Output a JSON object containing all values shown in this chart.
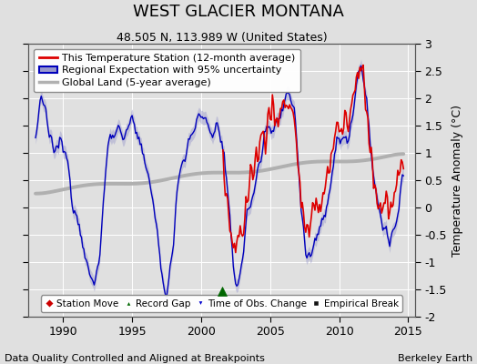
{
  "title": "WEST GLACIER MONTANA",
  "subtitle": "48.505 N, 113.989 W (United States)",
  "ylabel": "Temperature Anomaly (°C)",
  "xlabel_left": "Data Quality Controlled and Aligned at Breakpoints",
  "xlabel_right": "Berkeley Earth",
  "xlim": [
    1987.5,
    2015.5
  ],
  "ylim": [
    -2.0,
    3.0
  ],
  "yticks": [
    -2,
    -1.5,
    -1,
    -0.5,
    0,
    0.5,
    1,
    1.5,
    2,
    2.5,
    3
  ],
  "xticks": [
    1990,
    1995,
    2000,
    2005,
    2010,
    2015
  ],
  "bg_color": "#e0e0e0",
  "plot_bg_color": "#e0e0e0",
  "grid_color": "#ffffff",
  "red_line_color": "#dd0000",
  "blue_line_color": "#0000bb",
  "blue_fill_color": "#9999cc",
  "gray_line_color": "#b0b0b0",
  "marker_green_color": "#006600",
  "marker_green_x": 2001.5,
  "title_fontsize": 13,
  "subtitle_fontsize": 9,
  "tick_fontsize": 9,
  "legend_fontsize": 8,
  "annotation_fontsize": 8,
  "figsize": [
    5.24,
    4.0
  ],
  "dpi": 100
}
